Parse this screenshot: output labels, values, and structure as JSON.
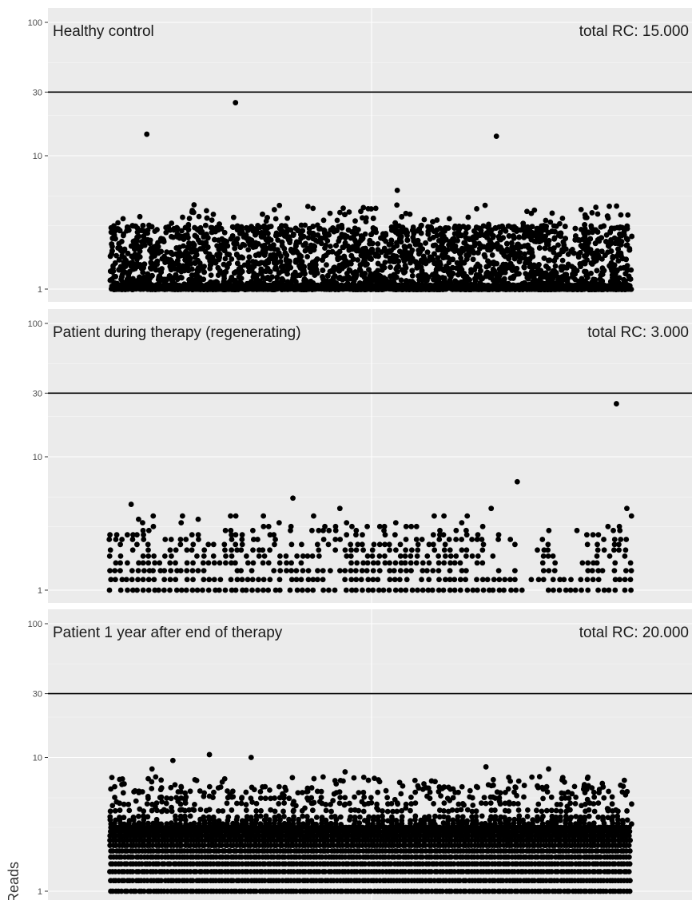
{
  "chart_data": {
    "type": "scatter",
    "y_axis": {
      "label": "Reads",
      "scale": "log",
      "range": [
        1,
        100
      ],
      "ticks": [
        1,
        10,
        30,
        100
      ]
    },
    "threshold": 30,
    "panels": [
      {
        "title": "Healthy control",
        "total_rc": "total RC: 15.000",
        "notable_points": [
          {
            "x": 0.07,
            "y": 14.5
          },
          {
            "x": 0.24,
            "y": 25
          },
          {
            "x": 0.55,
            "y": 5.5
          },
          {
            "x": 0.74,
            "y": 14
          },
          {
            "x": 0.49,
            "y": 3.2
          },
          {
            "x": 0.17,
            "y": 3.5
          },
          {
            "x": 0.91,
            "y": 3.6
          }
        ],
        "bulk": {
          "count": 7000,
          "min": 1,
          "max": 3,
          "max_decay": 3
        }
      },
      {
        "title": "Patient during therapy (regenerating)",
        "total_rc": "total RC: 3.000",
        "notable_points": [
          {
            "x": 0.97,
            "y": 25
          },
          {
            "x": 0.78,
            "y": 6.5
          },
          {
            "x": 0.35,
            "y": 4.9
          },
          {
            "x": 0.44,
            "y": 4.1
          },
          {
            "x": 0.04,
            "y": 4.4
          },
          {
            "x": 0.73,
            "y": 4.1
          },
          {
            "x": 0.99,
            "y": 4.1
          }
        ],
        "bulk": {
          "levels": [
            1,
            1.2,
            1.4,
            1.6,
            1.8,
            2,
            2.2,
            2.4,
            2.6,
            2.8,
            3,
            3.2,
            3.4,
            3.6
          ],
          "gaps": [
            [
              0.72,
              0.82
            ],
            [
              0.86,
              0.9
            ]
          ]
        }
      },
      {
        "title": "Patient 1 year after end of therapy",
        "total_rc": "total RC: 20.000",
        "notable_points": [
          {
            "x": 0.12,
            "y": 9.5
          },
          {
            "x": 0.19,
            "y": 10.5
          },
          {
            "x": 0.27,
            "y": 10
          },
          {
            "x": 0.72,
            "y": 8.5
          },
          {
            "x": 0.45,
            "y": 7.8
          },
          {
            "x": 0.08,
            "y": 8.2
          },
          {
            "x": 0.84,
            "y": 8.2
          }
        ],
        "bulk": {
          "levels": [
            1,
            1.2,
            1.4,
            1.6,
            1.8,
            2,
            2.2,
            2.4,
            2.6,
            2.8,
            3,
            3.2,
            3.4,
            3.6,
            4,
            4.5,
            5,
            5.5,
            6
          ]
        }
      }
    ]
  }
}
